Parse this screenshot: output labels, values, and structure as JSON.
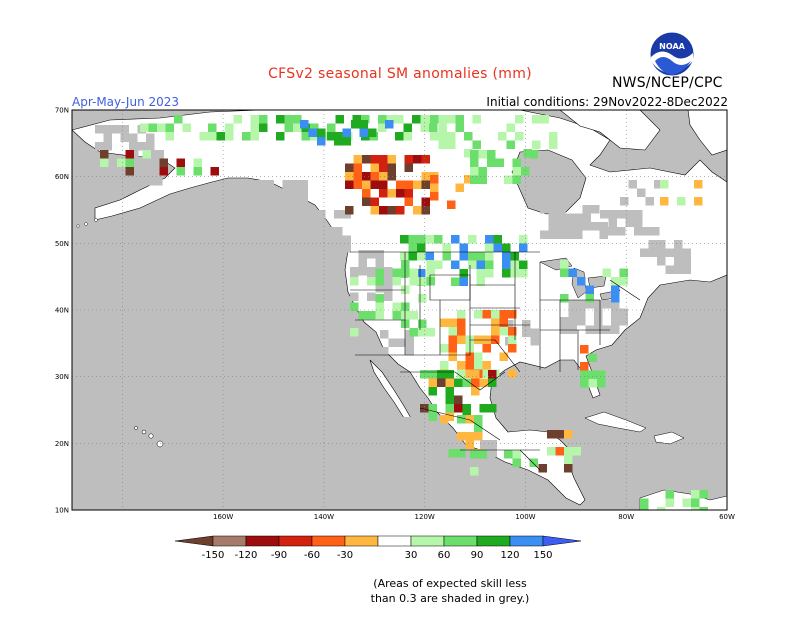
{
  "map": {
    "title": "CFSv2 seasonal SM anomalies (mm)",
    "period": "Apr-May-Jun 2023",
    "initial_conditions": "Initial conditions: 29Nov2022-8Dec2022",
    "agency": "NWS/NCEP/CPC",
    "logo_icon": "noaa-logo-icon",
    "logo_text": "NOAA",
    "lat_labels": [
      "70N",
      "60N",
      "50N",
      "40N",
      "30N",
      "20N",
      "10N"
    ],
    "lon_labels": [
      "160W",
      "140W",
      "120W",
      "100W",
      "80W",
      "60W"
    ],
    "region": "North America",
    "ocean_color": "#bebebe",
    "land_color": "#ffffff",
    "projection": "cylindrical equidistant",
    "grid": "dotted lat/lon lines every 10 degrees",
    "state_and_province_boundaries": true
  },
  "colorbar": {
    "tick_labels": [
      "-150",
      "-120",
      "-90",
      "-60",
      "-30",
      "30",
      "60",
      "90",
      "120",
      "150"
    ],
    "colors": [
      "#6e3f2c",
      "#a57b6c",
      "#9e0d0d",
      "#d2210f",
      "#ff6116",
      "#ffb740",
      "#ffffff",
      "#b6f6aa",
      "#6bde6b",
      "#1faa1f",
      "#3b8ef2",
      "#3d5ef2"
    ],
    "extend": "both",
    "units": "mm"
  },
  "footnote": {
    "line1": "(Areas of expected skill less",
    "line2": "than 0.3 are shaded in grey.)"
  },
  "anomaly_regions": [
    {
      "name": "northern Alaska / Yukon",
      "sign": "wet",
      "level": "30 to 90"
    },
    {
      "name": "Alberta / Saskatchewan",
      "sign": "dry",
      "level": "-30 to -120"
    },
    {
      "name": "Northern Plains",
      "sign": "wet",
      "level": "30 to 90"
    },
    {
      "name": "Southern Plains / Texas",
      "sign": "dry",
      "level": "-30 to -60"
    },
    {
      "name": "Mexico plateau",
      "sign": "dry",
      "level": "-30 to -150"
    },
    {
      "name": "Florida / Southeast coast",
      "sign": "wet",
      "level": "30 to 60"
    },
    {
      "name": "Central America",
      "sign": "dry",
      "level": "-30 to -150"
    }
  ]
}
